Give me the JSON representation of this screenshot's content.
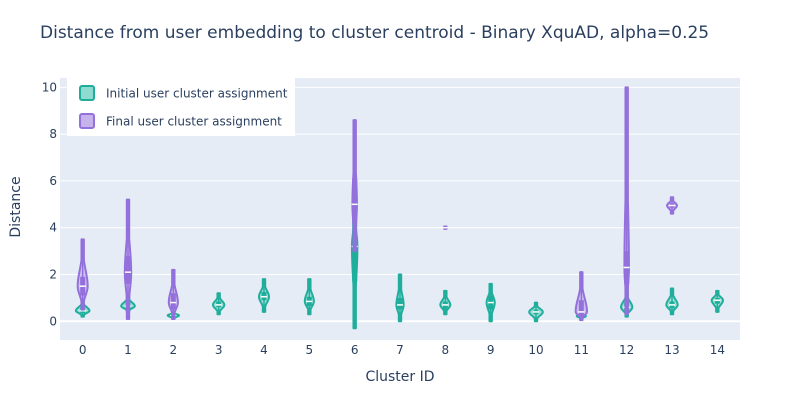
{
  "chart_data": {
    "type": "violin",
    "title": "Distance from user embedding to cluster centroid - Binary XquAD, alpha=0.25",
    "xlabel": "Cluster ID",
    "ylabel": "Distance",
    "categories": [
      "0",
      "1",
      "2",
      "3",
      "4",
      "5",
      "6",
      "7",
      "8",
      "9",
      "10",
      "11",
      "12",
      "13",
      "14"
    ],
    "ylim": [
      -0.8,
      10.4
    ],
    "yticks": [
      0,
      2,
      4,
      6,
      8,
      10
    ],
    "grid": true,
    "legend_position": "top-left",
    "series": [
      {
        "name": "Initial user cluster assignment",
        "color": "#1fae9b",
        "fill": "#8edbd0",
        "violins": [
          {
            "cat": 0,
            "min": 0.2,
            "q1": 0.35,
            "median": 0.45,
            "q3": 0.6,
            "max": 0.9,
            "width": 0.3
          },
          {
            "cat": 1,
            "min": 0.4,
            "q1": 0.55,
            "median": 0.65,
            "q3": 0.8,
            "max": 1.1,
            "width": 0.3
          },
          {
            "cat": 2,
            "min": 0.1,
            "q1": 0.2,
            "median": 0.25,
            "q3": 0.3,
            "max": 0.4,
            "width": 0.25
          },
          {
            "cat": 3,
            "min": 0.3,
            "q1": 0.6,
            "median": 0.7,
            "q3": 0.85,
            "max": 1.2,
            "width": 0.25
          },
          {
            "cat": 4,
            "min": 0.4,
            "q1": 0.9,
            "median": 1.05,
            "q3": 1.25,
            "max": 1.8,
            "width": 0.22
          },
          {
            "cat": 5,
            "min": 0.3,
            "q1": 0.65,
            "median": 0.85,
            "q3": 1.05,
            "max": 1.8,
            "width": 0.2
          },
          {
            "cat": 6,
            "min": -0.3,
            "q1": 1.7,
            "median": 3.2,
            "q3": 4.5,
            "max": 5.0,
            "width": 0.12
          },
          {
            "cat": 7,
            "min": 0.0,
            "q1": 0.5,
            "median": 0.7,
            "q3": 1.0,
            "max": 2.0,
            "width": 0.16
          },
          {
            "cat": 8,
            "min": 0.3,
            "q1": 0.5,
            "median": 0.7,
            "q3": 0.85,
            "max": 1.3,
            "width": 0.22
          },
          {
            "cat": 9,
            "min": 0.0,
            "q1": 0.5,
            "median": 0.8,
            "q3": 1.1,
            "max": 1.6,
            "width": 0.18
          },
          {
            "cat": 10,
            "min": 0.0,
            "q1": 0.3,
            "median": 0.4,
            "q3": 0.5,
            "max": 0.8,
            "width": 0.3
          },
          {
            "cat": 11,
            "min": 0.1,
            "q1": 0.18,
            "median": 0.22,
            "q3": 0.28,
            "max": 0.4,
            "width": 0.2
          },
          {
            "cat": 12,
            "min": 0.2,
            "q1": 0.45,
            "median": 0.6,
            "q3": 0.8,
            "max": 1.3,
            "width": 0.25
          },
          {
            "cat": 13,
            "min": 0.3,
            "q1": 0.55,
            "median": 0.7,
            "q3": 0.85,
            "max": 1.4,
            "width": 0.25
          },
          {
            "cat": 14,
            "min": 0.4,
            "q1": 0.75,
            "median": 0.9,
            "q3": 1.0,
            "max": 1.3,
            "width": 0.25
          }
        ]
      },
      {
        "name": "Final user cluster assignment",
        "color": "#9370db",
        "fill": "#c6b3ec",
        "violins": [
          {
            "cat": 0,
            "min": 0.5,
            "q1": 1.1,
            "median": 1.5,
            "q3": 1.9,
            "max": 3.5,
            "width": 0.22
          },
          {
            "cat": 1,
            "min": 0.1,
            "q1": 1.6,
            "median": 2.1,
            "q3": 2.8,
            "max": 5.2,
            "width": 0.14
          },
          {
            "cat": 2,
            "min": 0.1,
            "q1": 0.5,
            "median": 0.8,
            "q3": 1.2,
            "max": 2.2,
            "width": 0.2
          },
          {
            "cat": 6,
            "min": 3.0,
            "q1": 4.2,
            "median": 5.0,
            "q3": 6.1,
            "max": 8.6,
            "width": 0.1
          },
          {
            "cat": 8,
            "min": 3.95,
            "q1": 3.97,
            "median": 4.0,
            "q3": 4.02,
            "max": 4.05,
            "width": 0.08
          },
          {
            "cat": 11,
            "min": 0.05,
            "q1": 0.2,
            "median": 0.4,
            "q3": 0.9,
            "max": 2.1,
            "width": 0.25
          },
          {
            "cat": 12,
            "min": 0.3,
            "q1": 1.6,
            "median": 2.3,
            "q3": 3.0,
            "max": 10.0,
            "width": 0.1
          },
          {
            "cat": 13,
            "min": 4.6,
            "q1": 4.85,
            "median": 4.95,
            "q3": 5.05,
            "max": 5.3,
            "width": 0.22
          }
        ]
      }
    ]
  }
}
